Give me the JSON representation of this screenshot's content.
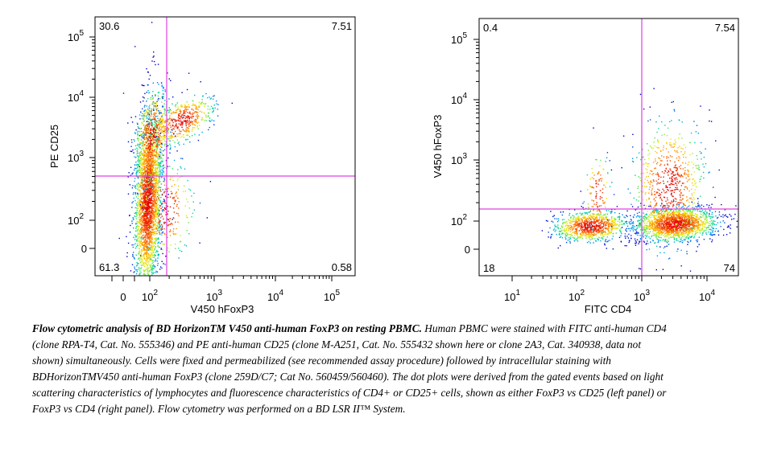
{
  "chart_data": [
    {
      "type": "scatter",
      "xlabel": "V450 hFoxP3",
      "ylabel": "PE CD25",
      "x_ticks": [
        "0",
        "10",
        "10",
        "10",
        "10"
      ],
      "x_tick_exps": [
        "",
        "2",
        "3",
        "4",
        "5"
      ],
      "y_ticks": [
        "0",
        "10",
        "10",
        "10",
        "10"
      ],
      "y_tick_exps": [
        "",
        "2",
        "3",
        "4",
        "5"
      ],
      "quadrants": {
        "top_left": "30.6",
        "top_right": "7.51",
        "bottom_left": "61.3",
        "bottom_right": "0.58"
      },
      "gate_color": "#e040e0",
      "populations": [
        {
          "name": "",
          "x_center": 80,
          "y_center": 400,
          "color": "#ff2000"
        }
      ]
    },
    {
      "type": "scatter",
      "xlabel": "FITC CD4",
      "ylabel": "V450 hFoxP3",
      "x_ticks": [
        "10",
        "10",
        "10",
        "10"
      ],
      "x_tick_exps": [
        "1",
        "2",
        "3",
        "4"
      ],
      "y_ticks": [
        "0",
        "10",
        "10",
        "10",
        "10"
      ],
      "y_tick_exps": [
        "",
        "2",
        "3",
        "4",
        "5"
      ],
      "quadrants": {
        "top_left": "0.4",
        "top_right": "7.54",
        "bottom_left": "18",
        "bottom_right": "74"
      },
      "gate_color": "#e040e0",
      "populations": [
        {
          "name": "",
          "x_center": 200,
          "y_center": 80,
          "color": "#30e060"
        },
        {
          "name": "",
          "x_center": 3500,
          "y_center": 90,
          "color": "#ff2000"
        }
      ]
    }
  ],
  "caption": {
    "bold": "Flow cytometric analysis of BD HorizonTM V450 anti-human FoxP3 on resting PBMC.",
    "text": " Human PBMC were stained with FITC anti-human CD4 (clone RPA-T4, Cat. No. 555346) and PE anti-human CD25 (clone M-A251, Cat. No. 555432  shown here or clone 2A3, Cat. 340938, data not shown) simultaneously.  Cells were fixed and permeabilized (see recommended assay procedure) followed by intracellular staining with BDHorizonTMV450 anti-human FoxP3 (clone 259D/C7; Cat No. 560459/560460). The dot plots were derived from the gated events based on light scattering characteristics of lymphocytes and fluorescence characteristics of CD4+ or CD25+ cells, shown as either FoxP3 vs CD25 (left panel) or FoxP3 vs CD4 (right panel). Flow cytometry was performed on a BD LSR II™ System."
  }
}
